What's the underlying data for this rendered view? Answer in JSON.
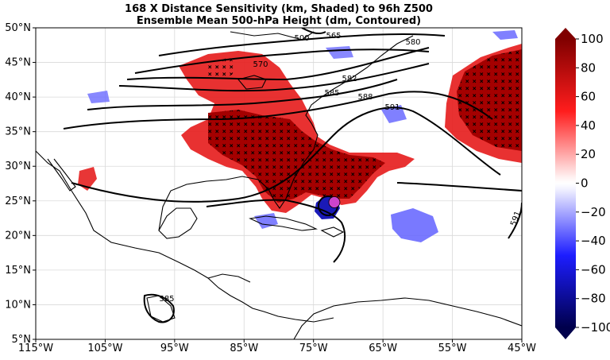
{
  "chart_data": {
    "type": "heatmap",
    "title": "168 X Distance Sensitivity (km, Shaded) to 96h Z500",
    "subtitle": "Ensemble Mean 500-hPa Height (dm, Contoured)",
    "x_ticks": [
      "115°W",
      "105°W",
      "95°W",
      "85°W",
      "75°W",
      "65°W",
      "55°W",
      "45°W"
    ],
    "y_ticks": [
      "50°N",
      "45°N",
      "40°N",
      "35°N",
      "30°N",
      "25°N",
      "20°N",
      "15°N",
      "10°N",
      "5°N"
    ],
    "xlim": [
      -115,
      -45
    ],
    "ylim": [
      5,
      50
    ],
    "grid": true,
    "colorbar": {
      "ticks": [
        "100",
        "80",
        "60",
        "40",
        "20",
        "0",
        "−20",
        "−40",
        "−60",
        "−80",
        "−100"
      ],
      "range": [
        -100,
        100
      ],
      "colormap": "seismic"
    },
    "contour_labels": [
      "500",
      "565",
      "570",
      "580",
      "582",
      "585",
      "588",
      "591",
      "591",
      "585"
    ],
    "storm_marker": {
      "lon": -72,
      "lat": 24.8,
      "color": "#cc44cc"
    }
  }
}
